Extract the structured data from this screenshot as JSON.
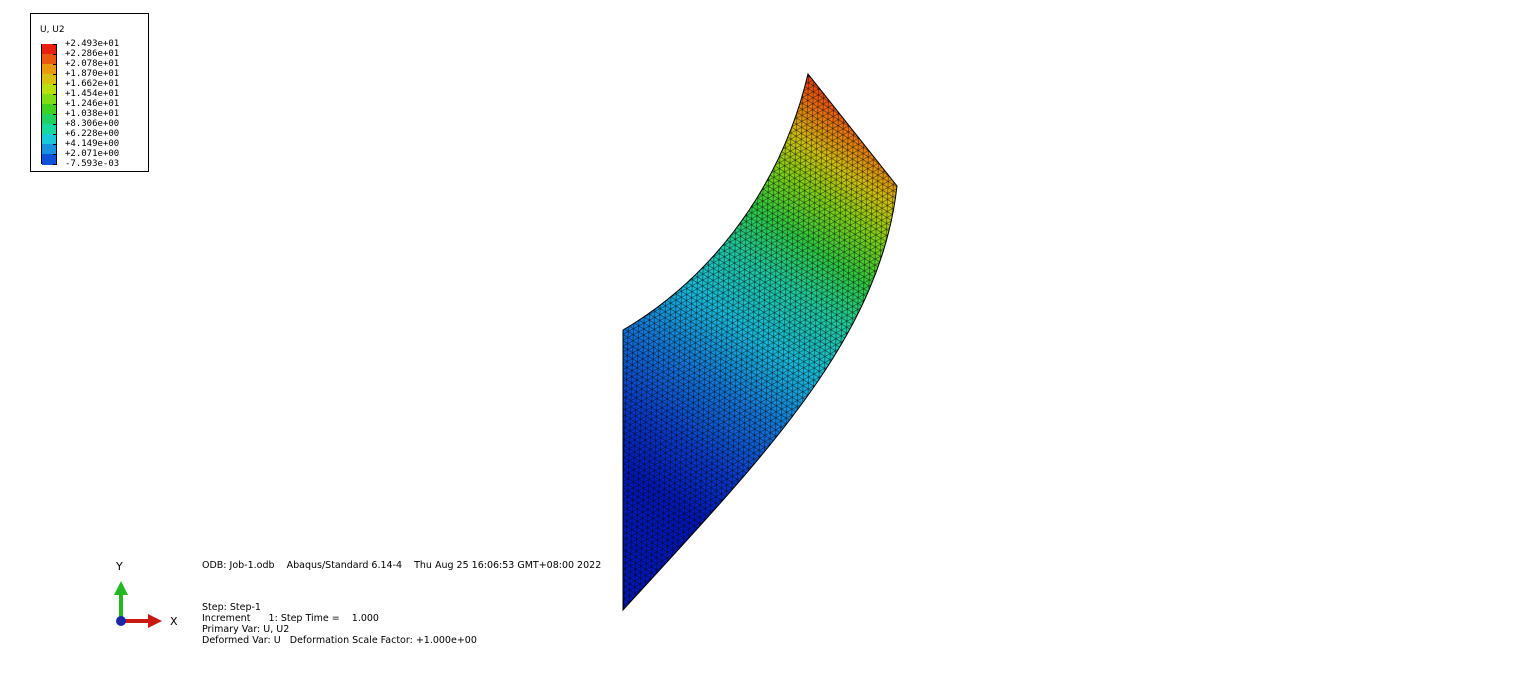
{
  "legend": {
    "title": "U, U2",
    "levels": [
      "+2.493e+01",
      "+2.286e+01",
      "+2.078e+01",
      "+1.870e+01",
      "+1.662e+01",
      "+1.454e+01",
      "+1.246e+01",
      "+1.038e+01",
      "+8.306e+00",
      "+6.228e+00",
      "+4.149e+00",
      "+2.071e+00",
      "-7.593e-03"
    ],
    "colors": [
      "#e8200f",
      "#e8580f",
      "#e89a10",
      "#d8c010",
      "#b8e010",
      "#80dc14",
      "#40d020",
      "#20d060",
      "#18d8a0",
      "#18c8d8",
      "#1890e0",
      "#1050d8",
      "#0020c0"
    ]
  },
  "triad": {
    "y_label": "Y",
    "x_label": "X",
    "colors": {
      "y_axis": "#22b822",
      "x_axis": "#c81a10",
      "origin": "#1a28a8"
    }
  },
  "info": {
    "odb_line": "ODB: Job-1.odb    Abaqus/Standard 6.14-4    Thu Aug 25 16:06:53 GMT+08:00 2022",
    "step_line": "Step: Step-1",
    "increment_line": "Increment      1: Step Time =    1.000",
    "primary_var_line": "Primary Var: U, U2",
    "deformed_var_line": "Deformed Var: U   Deformation Scale Factor: +1.000e+00"
  }
}
